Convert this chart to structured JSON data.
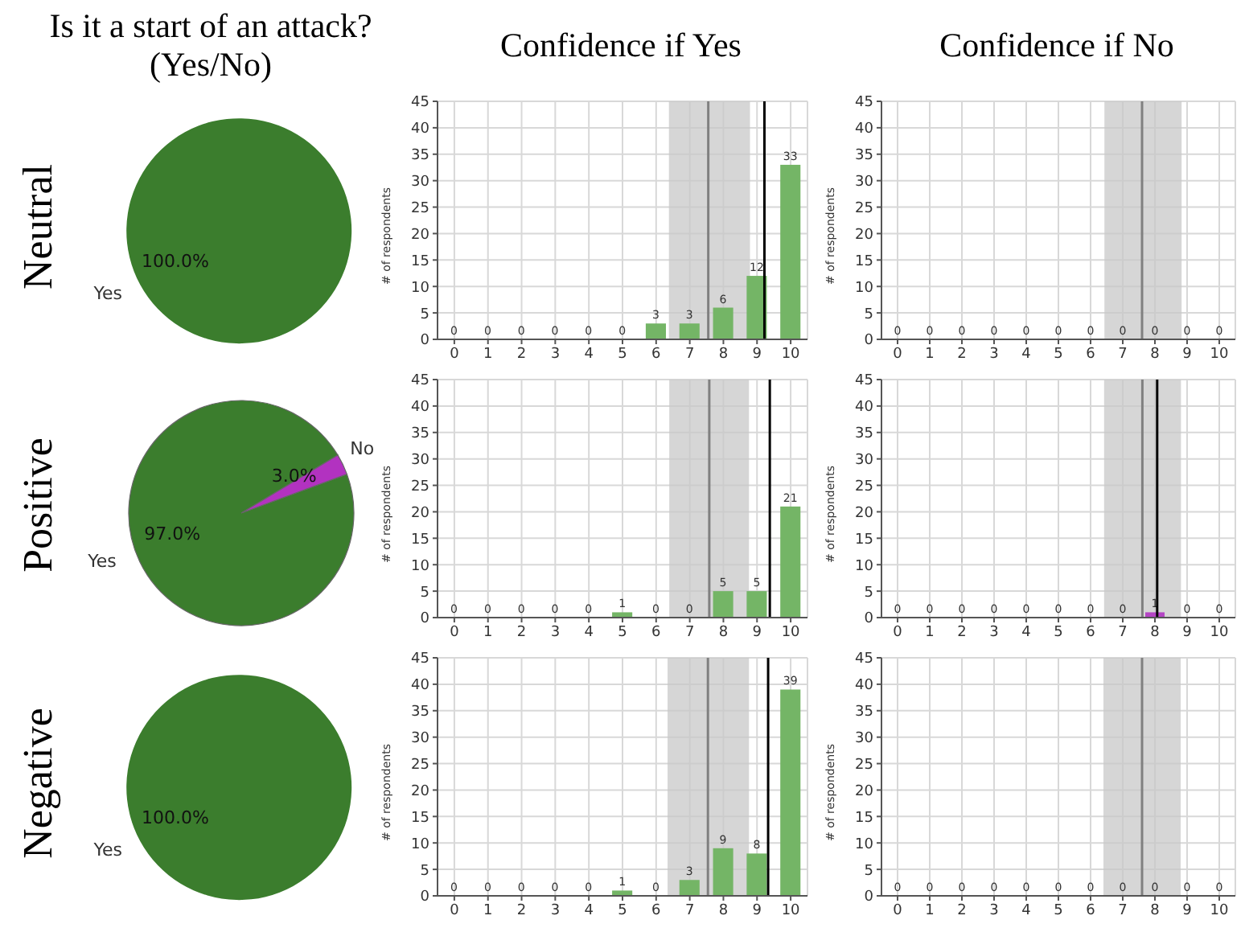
{
  "chart_data": [
    {
      "type": "pie",
      "title": "Is it a start of an attack? (Yes/No)",
      "ylabel": "Neutral",
      "categories": [
        "Yes"
      ],
      "values": [
        100
      ],
      "colors": [
        "#3b7d2d"
      ],
      "value_labels": [
        "100.0%"
      ]
    },
    {
      "type": "bar",
      "title": "Confidence if Yes",
      "ylabel": "# of respondents",
      "x": [
        0,
        1,
        2,
        3,
        4,
        5,
        6,
        7,
        8,
        9,
        10
      ],
      "values": [
        0,
        0,
        0,
        0,
        0,
        0,
        3,
        3,
        6,
        12,
        33
      ],
      "color": "#74b566",
      "xlim": [
        -0.5,
        10.5
      ],
      "xticks": [
        0,
        1,
        2,
        3,
        4,
        5,
        6,
        7,
        8,
        9,
        10
      ],
      "ylim": [
        0,
        45
      ],
      "yticks": [
        0,
        5,
        10,
        15,
        20,
        25,
        30,
        35,
        40,
        45
      ],
      "grid": true,
      "data_labels": true,
      "bands": [
        {
          "axis": "x",
          "from": 6.38,
          "to": 8.79,
          "color": "#c8c8c8"
        }
      ],
      "ref_lines": [
        {
          "axis": "x",
          "value": 7.55,
          "color": "#808080"
        },
        {
          "axis": "x",
          "value": 9.22,
          "color": "#000000"
        }
      ]
    },
    {
      "type": "bar",
      "title": "Confidence if No",
      "ylabel": "# of respondents",
      "x": [
        0,
        1,
        2,
        3,
        4,
        5,
        6,
        7,
        8,
        9,
        10
      ],
      "values": [
        0,
        0,
        0,
        0,
        0,
        0,
        0,
        0,
        0,
        0,
        0
      ],
      "color": "#b445c4",
      "xlim": [
        -0.5,
        10.5
      ],
      "xticks": [
        0,
        1,
        2,
        3,
        4,
        5,
        6,
        7,
        8,
        9,
        10
      ],
      "ylim": [
        0,
        45
      ],
      "yticks": [
        0,
        5,
        10,
        15,
        20,
        25,
        30,
        35,
        40,
        45
      ],
      "grid": true,
      "data_labels": true,
      "bands": [
        {
          "axis": "x",
          "from": 6.43,
          "to": 8.83,
          "color": "#c8c8c8"
        }
      ],
      "ref_lines": [
        {
          "axis": "x",
          "value": 7.6,
          "color": "#808080"
        }
      ]
    },
    {
      "type": "pie",
      "ylabel": "Positive",
      "categories": [
        "Yes",
        "No"
      ],
      "values": [
        97,
        3
      ],
      "colors": [
        "#3b7d2d",
        "#b232c0"
      ],
      "value_labels": [
        "97.0%",
        "3.0%"
      ]
    },
    {
      "type": "bar",
      "ylabel": "# of respondents",
      "x": [
        0,
        1,
        2,
        3,
        4,
        5,
        6,
        7,
        8,
        9,
        10
      ],
      "values": [
        0,
        0,
        0,
        0,
        0,
        1,
        0,
        0,
        5,
        5,
        21
      ],
      "color": "#74b566",
      "xlim": [
        -0.5,
        10.5
      ],
      "xticks": [
        0,
        1,
        2,
        3,
        4,
        5,
        6,
        7,
        8,
        9,
        10
      ],
      "ylim": [
        0,
        45
      ],
      "yticks": [
        0,
        5,
        10,
        15,
        20,
        25,
        30,
        35,
        40,
        45
      ],
      "grid": true,
      "data_labels": true,
      "bands": [
        {
          "axis": "x",
          "from": 6.39,
          "to": 8.76,
          "color": "#c8c8c8"
        }
      ],
      "ref_lines": [
        {
          "axis": "x",
          "value": 7.58,
          "color": "#808080"
        },
        {
          "axis": "x",
          "value": 9.38,
          "color": "#000000"
        }
      ]
    },
    {
      "type": "bar",
      "ylabel": "# of respondents",
      "x": [
        0,
        1,
        2,
        3,
        4,
        5,
        6,
        7,
        8,
        9,
        10
      ],
      "values": [
        0,
        0,
        0,
        0,
        0,
        0,
        0,
        0,
        1,
        0,
        0
      ],
      "color": "#b445c4",
      "xlim": [
        -0.5,
        10.5
      ],
      "xticks": [
        0,
        1,
        2,
        3,
        4,
        5,
        6,
        7,
        8,
        9,
        10
      ],
      "ylim": [
        0,
        45
      ],
      "yticks": [
        0,
        5,
        10,
        15,
        20,
        25,
        30,
        35,
        40,
        45
      ],
      "grid": true,
      "data_labels": true,
      "bands": [
        {
          "axis": "x",
          "from": 6.42,
          "to": 8.81,
          "color": "#c8c8c8"
        }
      ],
      "ref_lines": [
        {
          "axis": "x",
          "value": 7.61,
          "color": "#808080"
        },
        {
          "axis": "x",
          "value": 8.07,
          "color": "#000000"
        }
      ]
    },
    {
      "type": "pie",
      "ylabel": "Negative",
      "categories": [
        "Yes"
      ],
      "values": [
        100
      ],
      "colors": [
        "#3b7d2d"
      ],
      "value_labels": [
        "100.0%"
      ]
    },
    {
      "type": "bar",
      "ylabel": "# of respondents",
      "x": [
        0,
        1,
        2,
        3,
        4,
        5,
        6,
        7,
        8,
        9,
        10
      ],
      "values": [
        0,
        0,
        0,
        0,
        0,
        1,
        0,
        3,
        9,
        8,
        39
      ],
      "color": "#74b566",
      "xlim": [
        -0.5,
        10.5
      ],
      "xticks": [
        0,
        1,
        2,
        3,
        4,
        5,
        6,
        7,
        8,
        9,
        10
      ],
      "ylim": [
        0,
        45
      ],
      "yticks": [
        0,
        5,
        10,
        15,
        20,
        25,
        30,
        35,
        40,
        45
      ],
      "grid": true,
      "data_labels": true,
      "bands": [
        {
          "axis": "x",
          "from": 6.34,
          "to": 8.76,
          "color": "#c8c8c8"
        }
      ],
      "ref_lines": [
        {
          "axis": "x",
          "value": 7.54,
          "color": "#808080"
        },
        {
          "axis": "x",
          "value": 9.33,
          "color": "#000000"
        }
      ]
    },
    {
      "type": "bar",
      "ylabel": "# of respondents",
      "x": [
        0,
        1,
        2,
        3,
        4,
        5,
        6,
        7,
        8,
        9,
        10
      ],
      "values": [
        0,
        0,
        0,
        0,
        0,
        0,
        0,
        0,
        0,
        0,
        0
      ],
      "color": "#b445c4",
      "xlim": [
        -0.5,
        10.5
      ],
      "xticks": [
        0,
        1,
        2,
        3,
        4,
        5,
        6,
        7,
        8,
        9,
        10
      ],
      "ylim": [
        0,
        45
      ],
      "yticks": [
        0,
        5,
        10,
        15,
        20,
        25,
        30,
        35,
        40,
        45
      ],
      "grid": true,
      "data_labels": true,
      "bands": [
        {
          "axis": "x",
          "from": 6.4,
          "to": 8.8,
          "color": "#c8c8c8"
        }
      ],
      "ref_lines": [
        {
          "axis": "x",
          "value": 7.6,
          "color": "#808080"
        }
      ]
    }
  ]
}
